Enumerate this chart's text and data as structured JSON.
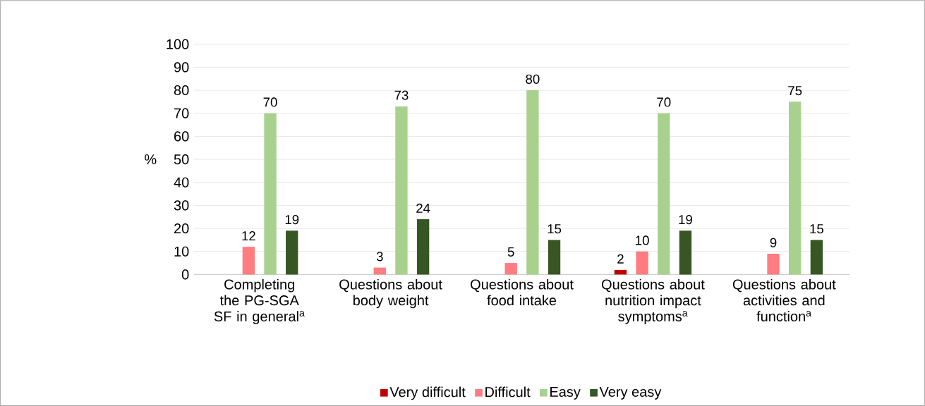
{
  "chart_data": {
    "type": "bar",
    "ylabel": "%",
    "categories": [
      "Completing the PG-SGA SF in general$^{a}$",
      "Questions about body weight",
      "Questions about food intake",
      "Questions about nutrition impact symptoms$^{a}$",
      "Questions about activities and function$^{a}$"
    ],
    "series": [
      {
        "name": "Very difficult",
        "color": "#c00000",
        "values": [
          null,
          null,
          null,
          2,
          null
        ]
      },
      {
        "name": "Difficult",
        "color": "#ff7c80",
        "values": [
          12,
          3,
          5,
          10,
          9
        ]
      },
      {
        "name": "Easy",
        "color": "#a9d18e",
        "values": [
          70,
          73,
          80,
          70,
          75
        ]
      },
      {
        "name": "Very easy",
        "color": "#375623",
        "values": [
          19,
          24,
          15,
          19,
          15
        ]
      }
    ],
    "ylim": [
      0,
      100
    ],
    "yticks": [
      0,
      10,
      20,
      30,
      40,
      50,
      60,
      70,
      80,
      90,
      100
    ],
    "grid": "y",
    "legend": "bottom",
    "data_labels": true
  }
}
